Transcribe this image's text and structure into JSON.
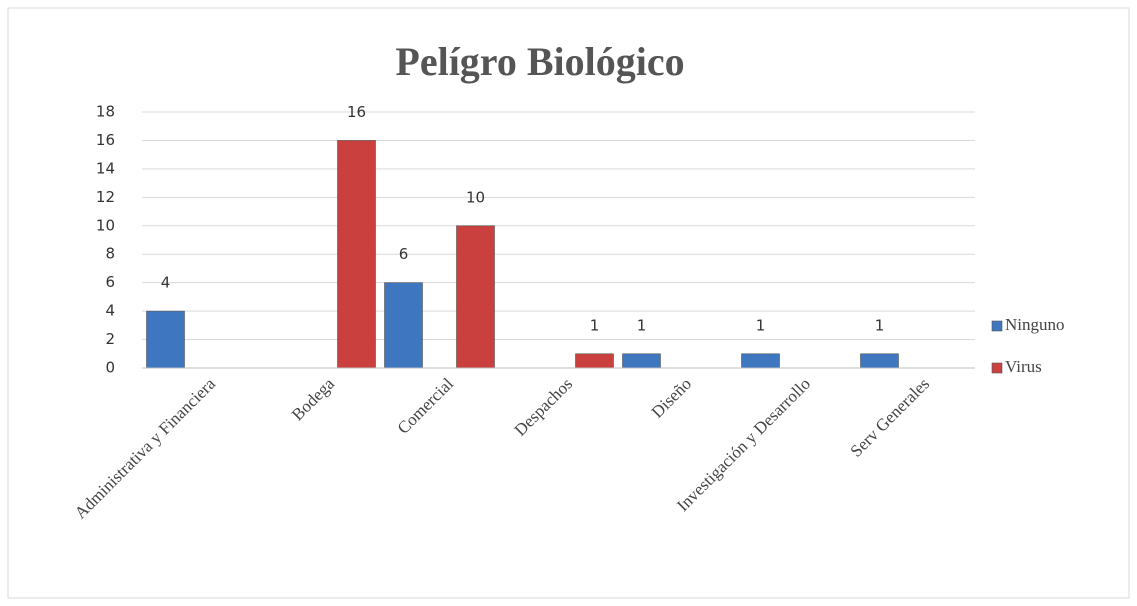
{
  "chart_data": {
    "type": "bar",
    "title": "Pelígro Biológico",
    "categories": [
      "Administrativa y Financiera",
      "Bodega",
      "Comercial",
      "Despachos",
      "Diseño",
      "Investigación y Desarrollo",
      "Serv Generales"
    ],
    "series": [
      {
        "name": "Ninguno",
        "color": "#3f76c0",
        "values": [
          4,
          null,
          6,
          null,
          1,
          1,
          1
        ]
      },
      {
        "name": "Virus",
        "color": "#c9403f",
        "values": [
          null,
          16,
          10,
          1,
          null,
          null,
          null
        ]
      }
    ],
    "ylim": [
      0,
      18
    ],
    "yticks": [
      0,
      2,
      4,
      6,
      8,
      10,
      12,
      14,
      16,
      18
    ],
    "grid": true,
    "legend": "right"
  }
}
